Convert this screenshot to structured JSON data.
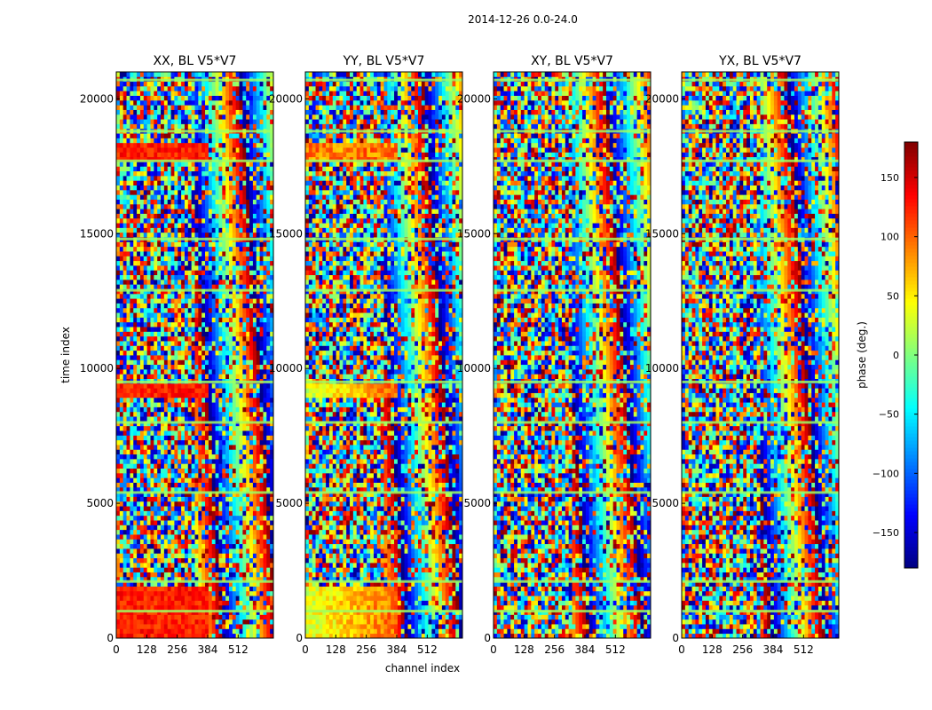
{
  "chart_data": {
    "type": "heatmap",
    "suptitle": "2014-12-26 0.0-24.0",
    "xlabel": "channel index",
    "ylabel": "time index",
    "xlim": [
      0,
      660
    ],
    "ylim": [
      0,
      21000
    ],
    "xticks": [
      0,
      128,
      256,
      384,
      512
    ],
    "yticks": [
      0,
      5000,
      10000,
      15000,
      20000
    ],
    "panels": [
      {
        "title": "XX, BL V5*V7",
        "polarization": "XX"
      },
      {
        "title": "YY, BL V5*V7",
        "polarization": "YY"
      },
      {
        "title": "XY, BL V5*V7",
        "polarization": "XY"
      },
      {
        "title": "YX, BL V5*V7",
        "polarization": "YX"
      }
    ],
    "colorbar": {
      "label": "phase (deg.)",
      "range": [
        -180,
        180
      ],
      "ticks": [
        -150,
        -100,
        -50,
        0,
        50,
        100,
        150
      ],
      "tick_labels": [
        "−150",
        "−100",
        "−50",
        "0",
        "50",
        "100",
        "150"
      ],
      "colormap": "jet"
    }
  }
}
